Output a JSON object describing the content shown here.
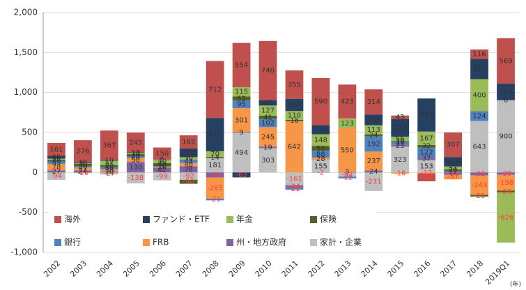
{
  "chart_data": {
    "type": "stacked_bar",
    "categories": [
      "2002",
      "2003",
      "2004",
      "2005",
      "2006",
      "2007",
      "2008",
      "2009",
      "2010",
      "2011",
      "2012",
      "2013",
      "2014",
      "2015",
      "2016",
      "2017",
      "2018",
      "2019Q1"
    ],
    "series": [
      {
        "name": "家計・企業",
        "color": "#bfbfbf",
        "values": [
          -94,
          -10,
          -27,
          -138,
          -99,
          -92,
          181,
          494,
          303,
          -161,
          155,
          -52,
          -231,
          323,
          153,
          0,
          643,
          900
        ]
      },
      {
        "name": "州・地方政府",
        "color": "#8064a2",
        "values": [
          27,
          24,
          10,
          130,
          62,
          78,
          -63,
          9,
          19,
          -34,
          -2,
          3,
          24,
          23,
          37,
          -30,
          -38,
          -30
        ]
      },
      {
        "name": "FRB",
        "color": "#f79646",
        "values": [
          78,
          37,
          30,
          50,
          10,
          40,
          -265,
          301,
          245,
          642,
          28,
          550,
          237,
          -16,
          -12,
          -57,
          -243,
          -198
        ]
      },
      {
        "name": "銀行",
        "color": "#4f81bd",
        "values": [
          33,
          20,
          30,
          20,
          5,
          43,
          -21,
          95,
          102,
          -21,
          88,
          -22,
          192,
          35,
          122,
          17,
          124,
          6
        ]
      },
      {
        "name": "保険",
        "color": "#4f6228",
        "values": [
          20,
          30,
          20,
          29,
          40,
          -50,
          14,
          52,
          41,
          16,
          59,
          0,
          24,
          10,
          32,
          20,
          -21,
          -24
        ]
      },
      {
        "name": "年金",
        "color": "#9bbb59",
        "values": [
          15,
          6,
          57,
          14,
          40,
          30,
          70,
          115,
          127,
          110,
          148,
          123,
          113,
          56,
          167,
          37,
          400,
          -626
        ]
      },
      {
        "name": "ファンド・ETF",
        "color": "#254061",
        "values": [
          35,
          10,
          10,
          10,
          5,
          108,
          417,
          -62,
          67,
          153,
          113,
          0,
          135,
          222,
          414,
          119,
          255,
          204
        ]
      },
      {
        "name": "海外",
        "color": "#c0504d",
        "values": [
          161,
          276,
          367,
          245,
          150,
          165,
          712,
          554,
          740,
          355,
          590,
          423,
          314,
          43,
          -99,
          307,
          116,
          569
        ]
      }
    ],
    "legend_order": [
      7,
      6,
      5,
      4,
      3,
      2,
      1,
      0
    ],
    "ylim": [
      -1000,
      2000
    ],
    "yticks": [
      {
        "value": -1000,
        "label": "-1,000"
      },
      -500,
      0,
      500,
      {
        "value": 1000,
        "label": "1,000"
      },
      {
        "value": 1500,
        "label": "1,500"
      },
      {
        "value": 2000,
        "label": "2,000"
      }
    ],
    "grid": true,
    "x_unit": "(年)"
  }
}
